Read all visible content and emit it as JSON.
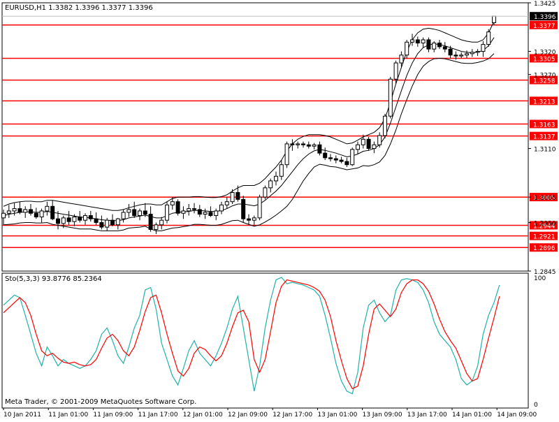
{
  "header": {
    "title": "EURUSD,H1  1.3382 1.3396 1.3377 1.3396"
  },
  "colors": {
    "background": "#ffffff",
    "axis": "#000000",
    "grid": "#c0c0c0",
    "bull_candle": "#ffffff",
    "bear_candle": "#000000",
    "level_line": "#ff0000",
    "level_label_bg": "#ff0000",
    "level_label_text": "#ffffff",
    "band_line": "#000000",
    "stoch_main": "#20b2aa",
    "stoch_signal": "#ff0000"
  },
  "footer": {
    "copyright": "Meta Trader, © 2001-2009 MetaQuotes Software Corp."
  },
  "chart_data": [
    {
      "type": "candlestick",
      "title": "EURUSD,H1  1.3382 1.3396 1.3377 1.3396",
      "timeframe": "H1",
      "ylim": [
        1.2845,
        1.3425
      ],
      "y_ticks": [
        "1.3425",
        "1.3320",
        "1.3270",
        "1.3110",
        "1.3005",
        "1.2950",
        "1.2845"
      ],
      "x_ticks": [
        "10 Jan 2011",
        "11 Jan 01:00",
        "11 Jan 09:00",
        "11 Jan 17:00",
        "12 Jan 01:00",
        "12 Jan 09:00",
        "12 Jan 17:00",
        "13 Jan 01:00",
        "13 Jan 09:00",
        "13 Jan 17:00",
        "14 Jan 01:00",
        "14 Jan 09:00"
      ],
      "current_price": "1.3396",
      "grid": false,
      "levels": [
        "1.3377",
        "1.3305",
        "1.3258",
        "1.3213",
        "1.3163",
        "1.3137",
        "1.3005",
        "1.2944",
        "1.2921",
        "1.2896"
      ],
      "candles": [
        [
          1.296,
          1.2978,
          1.2945,
          1.297
        ],
        [
          1.297,
          1.2988,
          1.296,
          1.2975
        ],
        [
          1.2975,
          1.2992,
          1.2965,
          1.298
        ],
        [
          1.298,
          1.2995,
          1.2968,
          1.2972
        ],
        [
          1.2972,
          1.2985,
          1.296,
          1.2978
        ],
        [
          1.2978,
          1.299,
          1.2965,
          1.297
        ],
        [
          1.297,
          1.2982,
          1.2958,
          1.2962
        ],
        [
          1.2962,
          1.298,
          1.295,
          1.2975
        ],
        [
          1.2975,
          1.2995,
          1.2965,
          1.2985
        ],
        [
          1.2985,
          1.2998,
          1.2955,
          1.2958
        ],
        [
          1.2958,
          1.2975,
          1.2935,
          1.2948
        ],
        [
          1.2948,
          1.2965,
          1.2938,
          1.296
        ],
        [
          1.296,
          1.2975,
          1.2945,
          1.2952
        ],
        [
          1.2952,
          1.2968,
          1.2942,
          1.2962
        ],
        [
          1.2962,
          1.2975,
          1.295,
          1.2955
        ],
        [
          1.2955,
          1.297,
          1.2945,
          1.2965
        ],
        [
          1.2965,
          1.2975,
          1.2952,
          1.2958
        ],
        [
          1.2958,
          1.2972,
          1.2945,
          1.295
        ],
        [
          1.295,
          1.2965,
          1.2935,
          1.294
        ],
        [
          1.294,
          1.296,
          1.2932,
          1.2955
        ],
        [
          1.2955,
          1.2968,
          1.2942,
          1.2945
        ],
        [
          1.2945,
          1.296,
          1.2935,
          1.2958
        ],
        [
          1.2958,
          1.2978,
          1.295,
          1.2972
        ],
        [
          1.2972,
          1.299,
          1.2962,
          1.2978
        ],
        [
          1.2978,
          1.2995,
          1.296,
          1.2965
        ],
        [
          1.2965,
          1.298,
          1.2955,
          1.2975
        ],
        [
          1.2975,
          1.2992,
          1.2962,
          1.2968
        ],
        [
          1.2968,
          1.2985,
          1.293,
          1.2935
        ],
        [
          1.2935,
          1.295,
          1.2925,
          1.2945
        ],
        [
          1.2945,
          1.2962,
          1.2935,
          1.2955
        ],
        [
          1.2955,
          1.2995,
          1.2948,
          1.2988
        ],
        [
          1.2988,
          1.3005,
          1.2978,
          1.2995
        ],
        [
          1.2995,
          1.3,
          1.2965,
          1.297
        ],
        [
          1.297,
          1.2985,
          1.2958,
          1.2975
        ],
        [
          1.2975,
          1.299,
          1.2965,
          1.298
        ],
        [
          1.298,
          1.2992,
          1.297,
          1.2978
        ],
        [
          1.2978,
          1.2988,
          1.2962,
          1.2968
        ],
        [
          1.2968,
          1.298,
          1.2958,
          1.2972
        ],
        [
          1.2972,
          1.2985,
          1.2962,
          1.2965
        ],
        [
          1.2965,
          1.298,
          1.2955,
          1.2975
        ],
        [
          1.2975,
          1.2995,
          1.2968,
          1.2988
        ],
        [
          1.2988,
          1.3005,
          1.298,
          1.2995
        ],
        [
          1.2995,
          1.3022,
          1.299,
          1.3015
        ],
        [
          1.3015,
          1.303,
          1.2995,
          1.3
        ],
        [
          1.3,
          1.3008,
          1.295,
          1.2958
        ],
        [
          1.2958,
          1.2968,
          1.2945,
          1.2955
        ],
        [
          1.2955,
          1.2965,
          1.2945,
          1.296
        ],
        [
          1.296,
          1.301,
          1.2955,
          1.3005
        ],
        [
          1.3005,
          1.303,
          1.3,
          1.3025
        ],
        [
          1.3025,
          1.3045,
          1.3015,
          1.304
        ],
        [
          1.304,
          1.306,
          1.303,
          1.305
        ],
        [
          1.305,
          1.3085,
          1.3042,
          1.3075
        ],
        [
          1.3075,
          1.3125,
          1.3068,
          1.312
        ],
        [
          1.312,
          1.313,
          1.3105,
          1.3118
        ],
        [
          1.3118,
          1.3125,
          1.311,
          1.312
        ],
        [
          1.312,
          1.3125,
          1.3112,
          1.3118
        ],
        [
          1.3118,
          1.3125,
          1.311,
          1.3115
        ],
        [
          1.3115,
          1.3122,
          1.3108,
          1.3118
        ],
        [
          1.3118,
          1.3125,
          1.3095,
          1.31
        ],
        [
          1.31,
          1.3112,
          1.3085,
          1.309
        ],
        [
          1.309,
          1.3098,
          1.3082,
          1.3088
        ],
        [
          1.3088,
          1.3095,
          1.3078,
          1.3085
        ],
        [
          1.3085,
          1.3092,
          1.3078,
          1.3082
        ],
        [
          1.3082,
          1.309,
          1.307,
          1.3075
        ],
        [
          1.3075,
          1.3112,
          1.3072,
          1.3108
        ],
        [
          1.3108,
          1.3125,
          1.3098,
          1.3118
        ],
        [
          1.3118,
          1.314,
          1.311,
          1.313
        ],
        [
          1.313,
          1.3135,
          1.3105,
          1.311
        ],
        [
          1.311,
          1.3125,
          1.31,
          1.3118
        ],
        [
          1.3118,
          1.3145,
          1.3112,
          1.3138
        ],
        [
          1.3138,
          1.3185,
          1.3132,
          1.318
        ],
        [
          1.318,
          1.3265,
          1.3175,
          1.326
        ],
        [
          1.326,
          1.33,
          1.325,
          1.3295
        ],
        [
          1.3295,
          1.332,
          1.3285,
          1.3312
        ],
        [
          1.3312,
          1.3345,
          1.3305,
          1.334
        ],
        [
          1.334,
          1.3358,
          1.3332,
          1.3345
        ],
        [
          1.3345,
          1.3352,
          1.333,
          1.3338
        ],
        [
          1.3338,
          1.335,
          1.3328,
          1.3345
        ],
        [
          1.3345,
          1.335,
          1.3318,
          1.3325
        ],
        [
          1.3325,
          1.3342,
          1.3318,
          1.3338
        ],
        [
          1.3338,
          1.3345,
          1.3325,
          1.333
        ],
        [
          1.333,
          1.334,
          1.3318,
          1.3325
        ],
        [
          1.3325,
          1.3332,
          1.3305,
          1.3312
        ],
        [
          1.3312,
          1.332,
          1.3302,
          1.331
        ],
        [
          1.331,
          1.3318,
          1.3305,
          1.3312
        ],
        [
          1.3312,
          1.3322,
          1.3305,
          1.3315
        ],
        [
          1.3315,
          1.3325,
          1.3308,
          1.3318
        ],
        [
          1.3318,
          1.3325,
          1.331,
          1.332
        ],
        [
          1.332,
          1.3342,
          1.3308,
          1.3335
        ],
        [
          1.3335,
          1.3368,
          1.333,
          1.3362
        ],
        [
          1.3382,
          1.3396,
          1.3377,
          1.3396
        ]
      ],
      "bands": {
        "upper": [
          1.2985,
          1.299,
          1.2993,
          1.2995,
          1.2996,
          1.2996,
          1.2995,
          1.2995,
          1.2998,
          1.2998,
          1.2996,
          1.2994,
          1.2992,
          1.299,
          1.2988,
          1.2986,
          1.2984,
          1.2982,
          1.298,
          1.2978,
          1.2976,
          1.2976,
          1.2978,
          1.2982,
          1.2985,
          1.2988,
          1.299,
          1.299,
          1.2988,
          1.2988,
          1.2995,
          1.3002,
          1.3005,
          1.3005,
          1.3005,
          1.3006,
          1.3006,
          1.3005,
          1.3004,
          1.3004,
          1.3006,
          1.301,
          1.3018,
          1.3025,
          1.303,
          1.303,
          1.303,
          1.3035,
          1.3045,
          1.3058,
          1.307,
          1.3085,
          1.3105,
          1.312,
          1.313,
          1.3136,
          1.314,
          1.314,
          1.314,
          1.3138,
          1.3135,
          1.313,
          1.3125,
          1.312,
          1.3122,
          1.3128,
          1.3135,
          1.314,
          1.3145,
          1.3155,
          1.3175,
          1.321,
          1.325,
          1.3285,
          1.332,
          1.3345,
          1.336,
          1.3368,
          1.337,
          1.3368,
          1.3365,
          1.336,
          1.3355,
          1.335,
          1.3345,
          1.3342,
          1.334,
          1.334,
          1.3345,
          1.336,
          1.3385
        ],
        "middle": [
          1.2965,
          1.2968,
          1.297,
          1.2972,
          1.2973,
          1.2973,
          1.2972,
          1.2972,
          1.2974,
          1.2972,
          1.297,
          1.2968,
          1.2966,
          1.2964,
          1.2962,
          1.2961,
          1.296,
          1.2958,
          1.2956,
          1.2955,
          1.2954,
          1.2954,
          1.2956,
          1.296,
          1.2962,
          1.2964,
          1.2966,
          1.2963,
          1.296,
          1.296,
          1.2965,
          1.297,
          1.2972,
          1.2973,
          1.2974,
          1.2976,
          1.2976,
          1.2975,
          1.2974,
          1.2974,
          1.2976,
          1.298,
          1.2986,
          1.299,
          1.299,
          1.2988,
          1.2986,
          1.299,
          1.2998,
          1.3008,
          1.3018,
          1.303,
          1.3045,
          1.306,
          1.3075,
          1.3088,
          1.3098,
          1.3105,
          1.3108,
          1.3106,
          1.3103,
          1.31,
          1.3096,
          1.3092,
          1.3094,
          1.3098,
          1.3104,
          1.3106,
          1.311,
          1.3118,
          1.3135,
          1.3165,
          1.32,
          1.3235,
          1.3268,
          1.3295,
          1.3315,
          1.3328,
          1.3334,
          1.3336,
          1.3335,
          1.3332,
          1.3328,
          1.3324,
          1.332,
          1.3318,
          1.3317,
          1.3318,
          1.3322,
          1.3332,
          1.335
        ],
        "lower": [
          1.2945,
          1.2946,
          1.2947,
          1.2949,
          1.295,
          1.295,
          1.2949,
          1.2949,
          1.295,
          1.2946,
          1.2944,
          1.2942,
          1.294,
          1.2938,
          1.2936,
          1.2936,
          1.2936,
          1.2934,
          1.2932,
          1.2932,
          1.2932,
          1.2932,
          1.2934,
          1.2938,
          1.2939,
          1.294,
          1.2942,
          1.2936,
          1.2932,
          1.2932,
          1.2935,
          1.2938,
          1.2939,
          1.2941,
          1.2943,
          1.2946,
          1.2946,
          1.2945,
          1.2944,
          1.2944,
          1.2946,
          1.295,
          1.2954,
          1.2955,
          1.295,
          1.2946,
          1.2942,
          1.2945,
          1.2951,
          1.2958,
          1.2966,
          1.2975,
          1.2985,
          1.3,
          1.302,
          1.304,
          1.3056,
          1.307,
          1.3076,
          1.3074,
          1.3071,
          1.307,
          1.3067,
          1.3064,
          1.3066,
          1.3068,
          1.3073,
          1.3072,
          1.3075,
          1.3081,
          1.3095,
          1.312,
          1.315,
          1.3185,
          1.3216,
          1.3245,
          1.327,
          1.3288,
          1.3298,
          1.3304,
          1.3305,
          1.3304,
          1.3301,
          1.3298,
          1.3295,
          1.3294,
          1.3294,
          1.3296,
          1.3299,
          1.3304,
          1.3315
        ]
      }
    },
    {
      "type": "line",
      "title": "Sto(5,3,3) 93.8776 85.2364",
      "ylim": [
        0,
        100
      ],
      "y_ticks": [
        "100",
        "0"
      ],
      "series": [
        {
          "name": "main",
          "color": "#20b2aa",
          "values": [
            78,
            82,
            86,
            84,
            70,
            55,
            40,
            30,
            45,
            38,
            30,
            35,
            32,
            30,
            28,
            30,
            35,
            42,
            55,
            60,
            50,
            38,
            32,
            45,
            60,
            70,
            90,
            92,
            75,
            48,
            35,
            22,
            15,
            28,
            42,
            50,
            40,
            35,
            30,
            38,
            48,
            60,
            75,
            85,
            60,
            35,
            10,
            30,
            60,
            82,
            98,
            100,
            95,
            96,
            95,
            94,
            92,
            90,
            85,
            70,
            52,
            32,
            18,
            10,
            8,
            25,
            60,
            78,
            82,
            72,
            65,
            70,
            90,
            98,
            99,
            98,
            96,
            90,
            80,
            65,
            55,
            50,
            45,
            35,
            20,
            15,
            18,
            30,
            55,
            70,
            80,
            94
          ]
        },
        {
          "name": "signal",
          "color": "#ff0000",
          "values": [
            72,
            76,
            80,
            84,
            80,
            70,
            55,
            42,
            38,
            40,
            36,
            33,
            32,
            33,
            31,
            30,
            31,
            35,
            44,
            52,
            55,
            50,
            42,
            38,
            45,
            58,
            73,
            84,
            86,
            72,
            55,
            40,
            26,
            22,
            28,
            40,
            45,
            43,
            38,
            34,
            38,
            48,
            61,
            72,
            74,
            65,
            35,
            25,
            35,
            57,
            80,
            93,
            98,
            97,
            96,
            95,
            94,
            92,
            89,
            82,
            69,
            50,
            34,
            20,
            12,
            14,
            30,
            55,
            75,
            79,
            74,
            69,
            75,
            88,
            95,
            98,
            98,
            95,
            89,
            79,
            67,
            57,
            50,
            44,
            34,
            24,
            18,
            20,
            35,
            52,
            68,
            85
          ]
        }
      ]
    }
  ]
}
